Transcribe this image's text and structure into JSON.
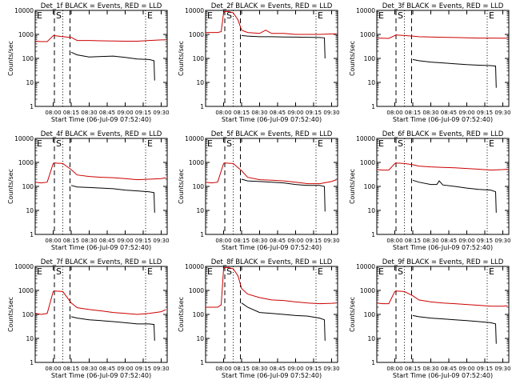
{
  "figure": {
    "background": "#ffffff",
    "ylabel": "Counts/sec",
    "xlabel": "Start Time (06-Jul-09 07:52:40)",
    "xticks": [
      "08:00",
      "08:15",
      "08:30",
      "08:45",
      "09:00",
      "09:15",
      "09:30"
    ],
    "yticks": [
      "1",
      "10",
      "100",
      "1000",
      "10000"
    ],
    "colors": {
      "events": "#000000",
      "lld": "#cc0000",
      "axes": "#000000"
    }
  },
  "chart_data": [
    {
      "type": "line",
      "title": "Det_1f BLACK = Events, RED = LLD",
      "xlabel": "Start Time (06-Jul-09 07:52:40)",
      "ylabel": "Counts/sec",
      "x_unit": "minutes after 08:00",
      "xlim": [
        -15,
        95
      ],
      "ylim": [
        1,
        10000
      ],
      "yscale": "log",
      "markers": [
        {
          "x": 1,
          "style": "dashed",
          "label": "S"
        },
        {
          "x": 8,
          "style": "dotted",
          "label": ""
        },
        {
          "x": 14,
          "style": "dashed",
          "label": ""
        },
        {
          "x": 77,
          "style": "dotted",
          "label": "E"
        }
      ],
      "corner_labels": [
        "E"
      ],
      "series": [
        {
          "name": "BLACK = Events",
          "color": "#000000",
          "x": [
            15,
            20,
            30,
            40,
            50,
            60,
            70,
            80,
            84,
            84.5
          ],
          "y": [
            180,
            140,
            115,
            120,
            125,
            110,
            95,
            90,
            80,
            12
          ]
        },
        {
          "name": "RED = LLD",
          "color": "#cc0000",
          "x": [
            -15,
            -10,
            -5,
            0,
            1,
            8,
            15,
            20,
            30,
            40,
            50,
            60,
            70,
            80,
            90,
            94
          ],
          "y": [
            520,
            500,
            500,
            880,
            890,
            800,
            750,
            560,
            560,
            540,
            530,
            520,
            520,
            560,
            590,
            600
          ]
        }
      ]
    },
    {
      "type": "line",
      "title": "Det_2f BLACK = Events, RED = LLD",
      "xlabel": "Start Time (06-Jul-09 07:52:40)",
      "ylabel": "Counts/sec",
      "x_unit": "minutes after 08:00",
      "xlim": [
        -15,
        95
      ],
      "ylim": [
        1,
        10000
      ],
      "yscale": "log",
      "markers": [
        {
          "x": 1,
          "style": "dashed",
          "label": "S"
        },
        {
          "x": 8,
          "style": "dotted",
          "label": ""
        },
        {
          "x": 14,
          "style": "dashed",
          "label": ""
        },
        {
          "x": 77,
          "style": "dotted",
          "label": "E"
        }
      ],
      "corner_labels": [
        "E"
      ],
      "series": [
        {
          "name": "BLACK = Events",
          "color": "#000000",
          "x": [
            15,
            20,
            30,
            40,
            50,
            60,
            70,
            80,
            84,
            84.5
          ],
          "y": [
            900,
            850,
            800,
            800,
            780,
            770,
            760,
            740,
            720,
            100
          ]
        },
        {
          "name": "RED = LLD",
          "color": "#cc0000",
          "x": [
            -15,
            -10,
            -5,
            -2,
            0,
            1,
            4,
            8,
            12,
            15,
            20,
            30,
            35,
            40,
            50,
            60,
            70,
            80,
            90,
            94
          ],
          "y": [
            1200,
            1200,
            1200,
            1300,
            8000,
            9000,
            9000,
            8000,
            4000,
            1500,
            1200,
            1100,
            1500,
            1100,
            1100,
            1000,
            1000,
            1000,
            1050,
            1050
          ]
        }
      ]
    },
    {
      "type": "line",
      "title": "Det_3f BLACK = Events, RED = LLD",
      "xlabel": "Start Time (06-Jul-09 07:52:40)",
      "ylabel": "Counts/sec",
      "x_unit": "minutes after 08:00",
      "xlim": [
        -15,
        95
      ],
      "ylim": [
        1,
        10000
      ],
      "yscale": "log",
      "markers": [
        {
          "x": 1,
          "style": "dashed",
          "label": "S"
        },
        {
          "x": 8,
          "style": "dotted",
          "label": ""
        },
        {
          "x": 14,
          "style": "dashed",
          "label": ""
        },
        {
          "x": 77,
          "style": "dotted",
          "label": "E"
        }
      ],
      "corner_labels": [
        "E"
      ],
      "series": [
        {
          "name": "BLACK = Events",
          "color": "#000000",
          "x": [
            15,
            20,
            30,
            40,
            50,
            60,
            70,
            80,
            84,
            84.5
          ],
          "y": [
            90,
            80,
            70,
            65,
            60,
            55,
            52,
            50,
            48,
            6
          ]
        },
        {
          "name": "RED = LLD",
          "color": "#cc0000",
          "x": [
            -15,
            -10,
            -5,
            0,
            1,
            8,
            15,
            20,
            30,
            40,
            50,
            60,
            70,
            80,
            90,
            94
          ],
          "y": [
            700,
            690,
            680,
            900,
            950,
            900,
            850,
            800,
            780,
            760,
            740,
            720,
            700,
            700,
            690,
            690
          ]
        }
      ]
    },
    {
      "type": "line",
      "title": "Det_4f BLACK = Events, RED = LLD",
      "xlabel": "Start Time (06-Jul-09 07:52:40)",
      "ylabel": "Counts/sec",
      "x_unit": "minutes after 08:00",
      "xlim": [
        -15,
        95
      ],
      "ylim": [
        1,
        10000
      ],
      "yscale": "log",
      "markers": [
        {
          "x": 1,
          "style": "dashed",
          "label": "S"
        },
        {
          "x": 8,
          "style": "dotted",
          "label": ""
        },
        {
          "x": 14,
          "style": "dashed",
          "label": ""
        },
        {
          "x": 77,
          "style": "dotted",
          "label": "E"
        }
      ],
      "corner_labels": [
        "E"
      ],
      "series": [
        {
          "name": "BLACK = Events",
          "color": "#000000",
          "x": [
            15,
            20,
            30,
            40,
            50,
            60,
            70,
            80,
            84,
            84.5
          ],
          "y": [
            110,
            95,
            90,
            85,
            80,
            70,
            65,
            60,
            55,
            8
          ]
        },
        {
          "name": "RED = LLD",
          "color": "#cc0000",
          "x": [
            -15,
            -10,
            -5,
            0,
            1,
            8,
            15,
            20,
            30,
            40,
            50,
            60,
            70,
            80,
            90,
            94
          ],
          "y": [
            150,
            140,
            150,
            900,
            950,
            900,
            500,
            300,
            260,
            240,
            230,
            210,
            190,
            200,
            210,
            230
          ]
        }
      ]
    },
    {
      "type": "line",
      "title": "Det_5f BLACK = Events, RED = LLD",
      "xlabel": "Start Time (06-Jul-09 07:52:40)",
      "ylabel": "Counts/sec",
      "x_unit": "minutes after 08:00",
      "xlim": [
        -15,
        95
      ],
      "ylim": [
        1,
        10000
      ],
      "yscale": "log",
      "markers": [
        {
          "x": 1,
          "style": "dashed",
          "label": "S"
        },
        {
          "x": 8,
          "style": "dotted",
          "label": ""
        },
        {
          "x": 14,
          "style": "dashed",
          "label": ""
        },
        {
          "x": 77,
          "style": "dotted",
          "label": "E"
        }
      ],
      "corner_labels": [
        "E"
      ],
      "series": [
        {
          "name": "BLACK = Events",
          "color": "#000000",
          "x": [
            15,
            20,
            30,
            40,
            50,
            60,
            70,
            80,
            84,
            84.5
          ],
          "y": [
            200,
            170,
            160,
            150,
            140,
            120,
            110,
            110,
            100,
            9
          ]
        },
        {
          "name": "RED = LLD",
          "color": "#cc0000",
          "x": [
            -15,
            -10,
            -5,
            0,
            1,
            8,
            15,
            20,
            30,
            40,
            50,
            60,
            70,
            80,
            90,
            94
          ],
          "y": [
            150,
            140,
            150,
            900,
            950,
            900,
            450,
            240,
            190,
            180,
            170,
            150,
            130,
            130,
            160,
            190
          ]
        }
      ]
    },
    {
      "type": "line",
      "title": "Det_6f BLACK = Events, RED = LLD",
      "xlabel": "Start Time (06-Jul-09 07:52:40)",
      "ylabel": "Counts/sec",
      "x_unit": "minutes after 08:00",
      "xlim": [
        -15,
        95
      ],
      "ylim": [
        1,
        10000
      ],
      "yscale": "log",
      "markers": [
        {
          "x": 1,
          "style": "dashed",
          "label": "S"
        },
        {
          "x": 8,
          "style": "dotted",
          "label": ""
        },
        {
          "x": 14,
          "style": "dashed",
          "label": ""
        },
        {
          "x": 77,
          "style": "dotted",
          "label": "E"
        }
      ],
      "corner_labels": [
        "E"
      ],
      "series": [
        {
          "name": "BLACK = Events",
          "color": "#000000",
          "x": [
            15,
            20,
            30,
            35,
            37,
            40,
            50,
            60,
            70,
            80,
            84,
            84.5
          ],
          "y": [
            180,
            150,
            120,
            120,
            170,
            115,
            100,
            85,
            75,
            70,
            60,
            8
          ]
        },
        {
          "name": "RED = LLD",
          "color": "#cc0000",
          "x": [
            -15,
            -10,
            -5,
            0,
            1,
            8,
            15,
            20,
            30,
            40,
            50,
            60,
            70,
            80,
            90,
            94
          ],
          "y": [
            500,
            480,
            480,
            900,
            950,
            900,
            800,
            700,
            650,
            620,
            600,
            560,
            520,
            480,
            500,
            520
          ]
        }
      ]
    },
    {
      "type": "line",
      "title": "Det_7f BLACK = Events, RED = LLD",
      "xlabel": "Start Time (06-Jul-09 07:52:40)",
      "ylabel": "Counts/sec",
      "x_unit": "minutes after 08:00",
      "xlim": [
        -15,
        95
      ],
      "ylim": [
        1,
        10000
      ],
      "yscale": "log",
      "markers": [
        {
          "x": 1,
          "style": "dashed",
          "label": "S"
        },
        {
          "x": 8,
          "style": "dotted",
          "label": ""
        },
        {
          "x": 14,
          "style": "dashed",
          "label": ""
        },
        {
          "x": 77,
          "style": "dotted",
          "label": "E"
        }
      ],
      "corner_labels": [
        "E"
      ],
      "series": [
        {
          "name": "BLACK = Events",
          "color": "#000000",
          "x": [
            15,
            20,
            30,
            40,
            50,
            60,
            70,
            80,
            84,
            84.5
          ],
          "y": [
            80,
            70,
            60,
            55,
            50,
            45,
            40,
            40,
            38,
            8
          ]
        },
        {
          "name": "RED = LLD",
          "color": "#cc0000",
          "x": [
            -15,
            -10,
            -5,
            0,
            1,
            8,
            15,
            20,
            30,
            40,
            50,
            60,
            70,
            80,
            90,
            94
          ],
          "y": [
            110,
            100,
            110,
            900,
            950,
            900,
            300,
            190,
            160,
            140,
            120,
            110,
            100,
            110,
            130,
            160
          ]
        }
      ]
    },
    {
      "type": "line",
      "title": "Det_8f BLACK = Events, RED = LLD",
      "xlabel": "Start Time (06-Jul-09 07:52:40)",
      "ylabel": "Counts/sec",
      "x_unit": "minutes after 08:00",
      "xlim": [
        -15,
        95
      ],
      "ylim": [
        1,
        10000
      ],
      "yscale": "log",
      "markers": [
        {
          "x": 1,
          "style": "dashed",
          "label": "S"
        },
        {
          "x": 8,
          "style": "dotted",
          "label": ""
        },
        {
          "x": 14,
          "style": "dashed",
          "label": ""
        },
        {
          "x": 77,
          "style": "dotted",
          "label": "E"
        }
      ],
      "corner_labels": [
        "E"
      ],
      "series": [
        {
          "name": "BLACK = Events",
          "color": "#000000",
          "x": [
            15,
            20,
            30,
            40,
            50,
            60,
            70,
            80,
            84,
            84.5
          ],
          "y": [
            300,
            200,
            120,
            110,
            100,
            90,
            85,
            70,
            60,
            8
          ]
        },
        {
          "name": "RED = LLD",
          "color": "#cc0000",
          "x": [
            -15,
            -10,
            -5,
            -2,
            0,
            1,
            4,
            8,
            12,
            15,
            20,
            30,
            40,
            50,
            60,
            70,
            80,
            90,
            94
          ],
          "y": [
            200,
            200,
            200,
            250,
            8000,
            9000,
            9000,
            8000,
            4000,
            1200,
            700,
            500,
            400,
            380,
            330,
            300,
            280,
            290,
            300
          ]
        }
      ]
    },
    {
      "type": "line",
      "title": "Det_9f BLACK = Events, RED = LLD",
      "xlabel": "Start Time (06-Jul-09 07:52:40)",
      "ylabel": "Counts/sec",
      "x_unit": "minutes after 08:00",
      "xlim": [
        -15,
        95
      ],
      "ylim": [
        1,
        10000
      ],
      "yscale": "log",
      "markers": [
        {
          "x": 1,
          "style": "dashed",
          "label": "S"
        },
        {
          "x": 8,
          "style": "dotted",
          "label": ""
        },
        {
          "x": 14,
          "style": "dashed",
          "label": ""
        },
        {
          "x": 77,
          "style": "dotted",
          "label": "E"
        }
      ],
      "corner_labels": [
        "E"
      ],
      "series": [
        {
          "name": "BLACK = Events",
          "color": "#000000",
          "x": [
            15,
            20,
            30,
            40,
            50,
            60,
            70,
            80,
            84,
            84.5
          ],
          "y": [
            90,
            80,
            70,
            65,
            60,
            55,
            50,
            45,
            40,
            6
          ]
        },
        {
          "name": "RED = LLD",
          "color": "#cc0000",
          "x": [
            -15,
            -10,
            -5,
            0,
            1,
            8,
            15,
            20,
            30,
            40,
            50,
            60,
            70,
            80,
            90,
            94
          ],
          "y": [
            300,
            280,
            280,
            900,
            950,
            900,
            600,
            400,
            330,
            300,
            280,
            260,
            240,
            220,
            220,
            230
          ]
        }
      ]
    }
  ]
}
